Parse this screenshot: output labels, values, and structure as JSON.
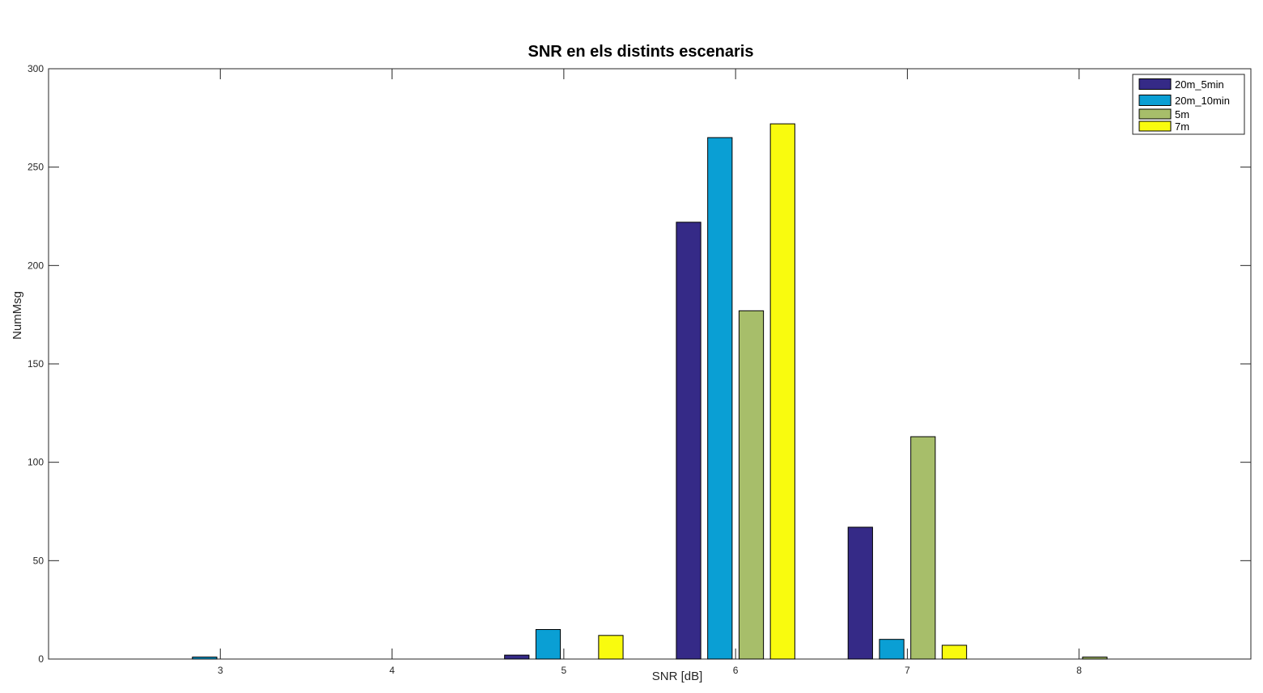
{
  "chart_data": {
    "type": "bar",
    "title": "SNR en els distints escenaris",
    "xlabel": "SNR [dB]",
    "ylabel": "NumMsg",
    "xlim": [
      2,
      9
    ],
    "ylim": [
      0,
      300
    ],
    "x_ticks": [
      3,
      4,
      5,
      6,
      7,
      8
    ],
    "y_ticks": [
      0,
      50,
      100,
      150,
      200,
      250,
      300
    ],
    "categories": [
      3,
      4,
      5,
      6,
      7,
      8
    ],
    "series": [
      {
        "name": "20m_5min",
        "color": "#352A87",
        "values": [
          0,
          0,
          2,
          222,
          67,
          0
        ]
      },
      {
        "name": "20m_10min",
        "color": "#0A9FD4",
        "values": [
          1,
          0,
          15,
          265,
          10,
          0
        ]
      },
      {
        "name": "5m",
        "color": "#A7BE6A",
        "values": [
          0,
          0,
          0,
          177,
          113,
          1
        ]
      },
      {
        "name": "7m",
        "color": "#F9FB0E",
        "values": [
          0,
          0,
          12,
          272,
          7,
          0
        ]
      }
    ],
    "grid": false,
    "legend_position": "top-right"
  }
}
